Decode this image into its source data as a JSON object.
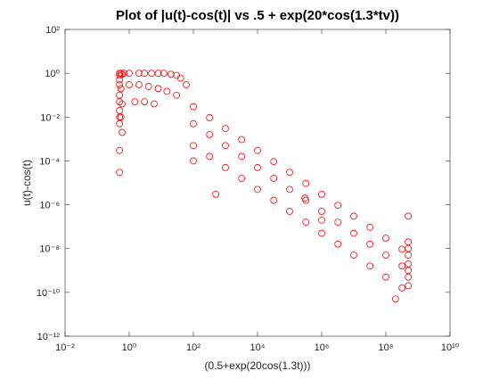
{
  "chart_data": {
    "type": "scatter",
    "title": "Plot of |u(t)-cos(t)| vs .5 + exp(20*cos(1.3*tv))",
    "xlabel": "(0.5+exp(20cos(1.3t)))",
    "ylabel": "u(t)-cos(t)",
    "xscale": "log",
    "yscale": "log",
    "color": "#ff0000",
    "xlim": [
      0.01,
      10000000000
    ],
    "ylim": [
      1e-12,
      100
    ],
    "xticks": [
      {
        "value": 0.01,
        "label": "10⁻²"
      },
      {
        "value": 1,
        "label": "10⁰"
      },
      {
        "value": 100,
        "label": "10²"
      },
      {
        "value": 10000,
        "label": "10⁴"
      },
      {
        "value": 1000000,
        "label": "10⁶"
      },
      {
        "value": 100000000,
        "label": "10⁸"
      },
      {
        "value": 10000000000,
        "label": "10¹⁰"
      }
    ],
    "yticks": [
      {
        "value": 1e-12,
        "label": "10⁻¹²"
      },
      {
        "value": 1e-10,
        "label": "10⁻¹⁰"
      },
      {
        "value": 1e-08,
        "label": "10⁻⁸"
      },
      {
        "value": 1e-06,
        "label": "10⁻⁶"
      },
      {
        "value": 0.0001,
        "label": "10⁻⁴"
      },
      {
        "value": 0.01,
        "label": "10⁻²"
      },
      {
        "value": 1,
        "label": "10⁰"
      },
      {
        "value": 100,
        "label": "10²"
      }
    ],
    "x": [
      0.5,
      0.5,
      0.5,
      0.5,
      0.5,
      0.5,
      0.5,
      0.5,
      0.5,
      0.5,
      0.5,
      0.55,
      0.55,
      0.55,
      0.6,
      0.6,
      0.6,
      0.7,
      1,
      2,
      3,
      5,
      8,
      12,
      20,
      30,
      40,
      60,
      1,
      2,
      4,
      8,
      15,
      30,
      1.5,
      3,
      6,
      100,
      320,
      1000,
      3200,
      10000,
      32000,
      100000,
      320000,
      1000000,
      3200000,
      10000000,
      32000000,
      100000000,
      320000000,
      100,
      320,
      1000,
      3200,
      10000,
      32000,
      100000,
      320000,
      1000000,
      3200000,
      10000000,
      32000000,
      100000000,
      320000000,
      100,
      320,
      1000,
      3200,
      10000,
      32000,
      100000,
      320000,
      1000000,
      3200000,
      10000000,
      32000000,
      100000000,
      320000000,
      100,
      500,
      300000,
      1000000,
      200000000,
      500000000,
      500000000,
      500000000,
      500000000,
      500000000,
      500000000,
      500000000,
      500000000
    ],
    "values": [
      1,
      0.8,
      0.5,
      0.3,
      0.1,
      0.05,
      0.02,
      0.01,
      0.005,
      0.0003,
      3e-05,
      1,
      0.2,
      0.01,
      0.9,
      0.04,
      0.002,
      1,
      1,
      1,
      1,
      1,
      1,
      1,
      0.9,
      0.8,
      0.6,
      0.3,
      0.3,
      0.3,
      0.25,
      0.2,
      0.15,
      0.1,
      0.05,
      0.05,
      0.04,
      0.03,
      0.0094,
      0.003,
      0.00094,
      0.0003,
      9.4e-05,
      3e-05,
      9.4e-06,
      3e-06,
      9.4e-07,
      3e-07,
      9.4e-08,
      3e-08,
      9.4e-09,
      0.005,
      0.0016,
      0.0005,
      0.00016,
      5e-05,
      1.6e-05,
      5e-06,
      1.6e-06,
      5e-07,
      1.6e-07,
      5e-08,
      1.6e-08,
      5e-09,
      1.6e-09,
      0.0005,
      0.00016,
      5e-05,
      1.6e-05,
      5e-06,
      1.6e-06,
      5e-07,
      1.6e-07,
      5e-08,
      1.6e-08,
      5e-09,
      1.6e-09,
      5e-10,
      1.6e-10,
      0.0001,
      3e-06,
      2e-06,
      2e-07,
      5e-11,
      3e-07,
      2e-08,
      1e-08,
      5e-09,
      2e-09,
      1e-09,
      5e-10,
      2e-10
    ]
  }
}
